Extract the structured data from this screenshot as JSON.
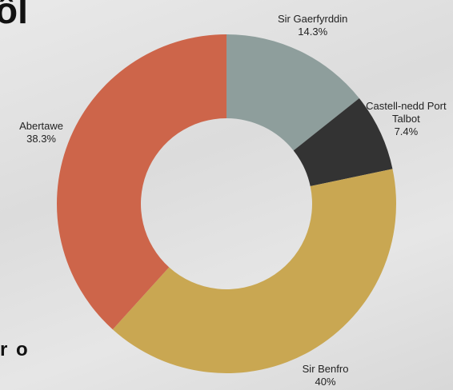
{
  "page": {
    "fragments": [
      "ôl",
      "r o"
    ]
  },
  "chart_data": {
    "type": "donut",
    "categories": [
      "Sir Gaerfyrddin",
      "Castell-nedd Port Talbot",
      "Sir Benfro",
      "Abertawe"
    ],
    "values": [
      14.3,
      7.4,
      40,
      38.3
    ],
    "value_labels": [
      "14.3%",
      "7.4%",
      "40%",
      "38.3%"
    ],
    "colors": [
      "#8e9e9c",
      "#333333",
      "#c9a752",
      "#cd654a"
    ]
  }
}
